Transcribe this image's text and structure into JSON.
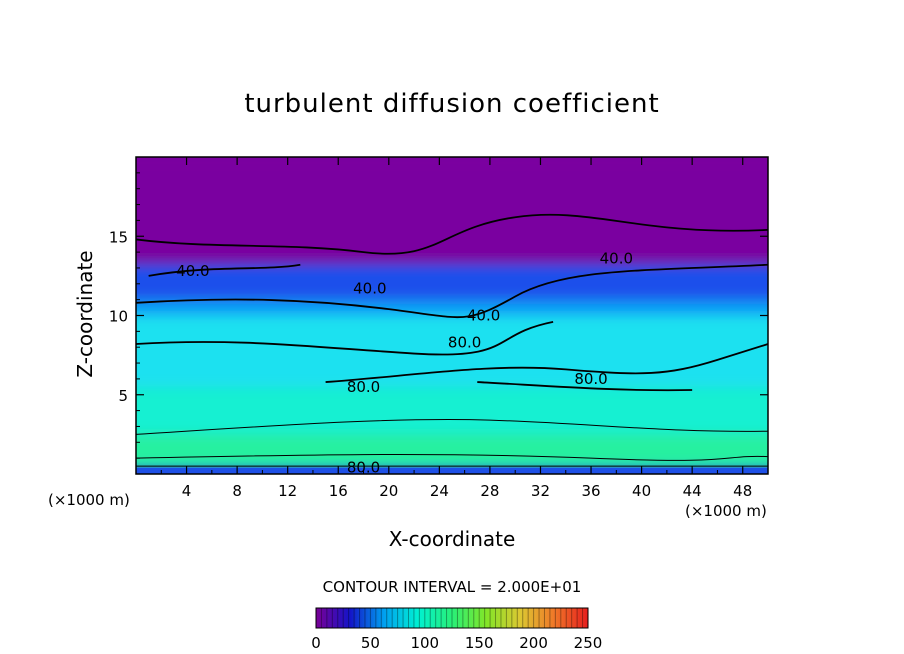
{
  "chart_data": {
    "type": "heatmap",
    "title": "turbulent diffusion coefficient",
    "xlabel": "X-coordinate",
    "ylabel": "Z-coordinate",
    "x_unit_left": "(×1000 m)",
    "x_unit_right": "(×1000 m)",
    "xlim": [
      0,
      50
    ],
    "ylim": [
      0,
      20
    ],
    "x_ticks": [
      "4",
      "8",
      "12",
      "16",
      "20",
      "24",
      "28",
      "32",
      "36",
      "40",
      "44",
      "48"
    ],
    "x_tick_values": [
      4,
      8,
      12,
      16,
      20,
      24,
      28,
      32,
      36,
      40,
      44,
      48
    ],
    "y_ticks": [
      "5",
      "10",
      "15"
    ],
    "y_tick_values": [
      5,
      10,
      15
    ],
    "contour_interval_text": "CONTOUR INTERVAL = 2.000E+01",
    "colorbar": {
      "min": 0,
      "max": 250,
      "labels": [
        "0",
        "50",
        "100",
        "150",
        "200",
        "250"
      ],
      "label_values": [
        0,
        50,
        100,
        150,
        200,
        250
      ],
      "colors": [
        "#7a0096",
        "#1414c8",
        "#00a0f0",
        "#00f0d2",
        "#28f078",
        "#82e628",
        "#dcc832",
        "#f07828",
        "#e61e1e"
      ]
    },
    "field_bands": [
      {
        "z_bottom": 0.0,
        "z_top": 0.4,
        "value": 50,
        "color": "#1e50e6"
      },
      {
        "z_bottom": 0.4,
        "z_top": 2.5,
        "value": 120,
        "color": "#28f0a0"
      },
      {
        "z_bottom": 2.5,
        "z_top": 5.5,
        "value": 100,
        "color": "#14f0d2"
      },
      {
        "z_bottom": 5.5,
        "z_top": 10.0,
        "value": 90,
        "color": "#1ee1f0"
      },
      {
        "z_bottom": 10.0,
        "z_top": 11.0,
        "value": 60,
        "color": "#0a9bf5"
      },
      {
        "z_bottom": 11.0,
        "z_top": 14.5,
        "value": 35,
        "color": "#1e50eb"
      },
      {
        "z_bottom": 14.5,
        "z_top": 20.0,
        "value": 10,
        "color": "#7a00a0"
      }
    ],
    "contour_labels": [
      {
        "text": "40.0",
        "x": 4.5,
        "z": 12.8
      },
      {
        "text": "40.0",
        "x": 18.5,
        "z": 11.7
      },
      {
        "text": "40.0",
        "x": 27.5,
        "z": 10.0
      },
      {
        "text": "40.0",
        "x": 38.0,
        "z": 13.6
      },
      {
        "text": "80.0",
        "x": 26.0,
        "z": 8.3
      },
      {
        "text": "80.0",
        "x": 18.0,
        "z": 5.5
      },
      {
        "text": "80.0",
        "x": 36.0,
        "z": 6.0
      },
      {
        "text": "80.0",
        "x": 18.0,
        "z": 0.4
      }
    ]
  }
}
